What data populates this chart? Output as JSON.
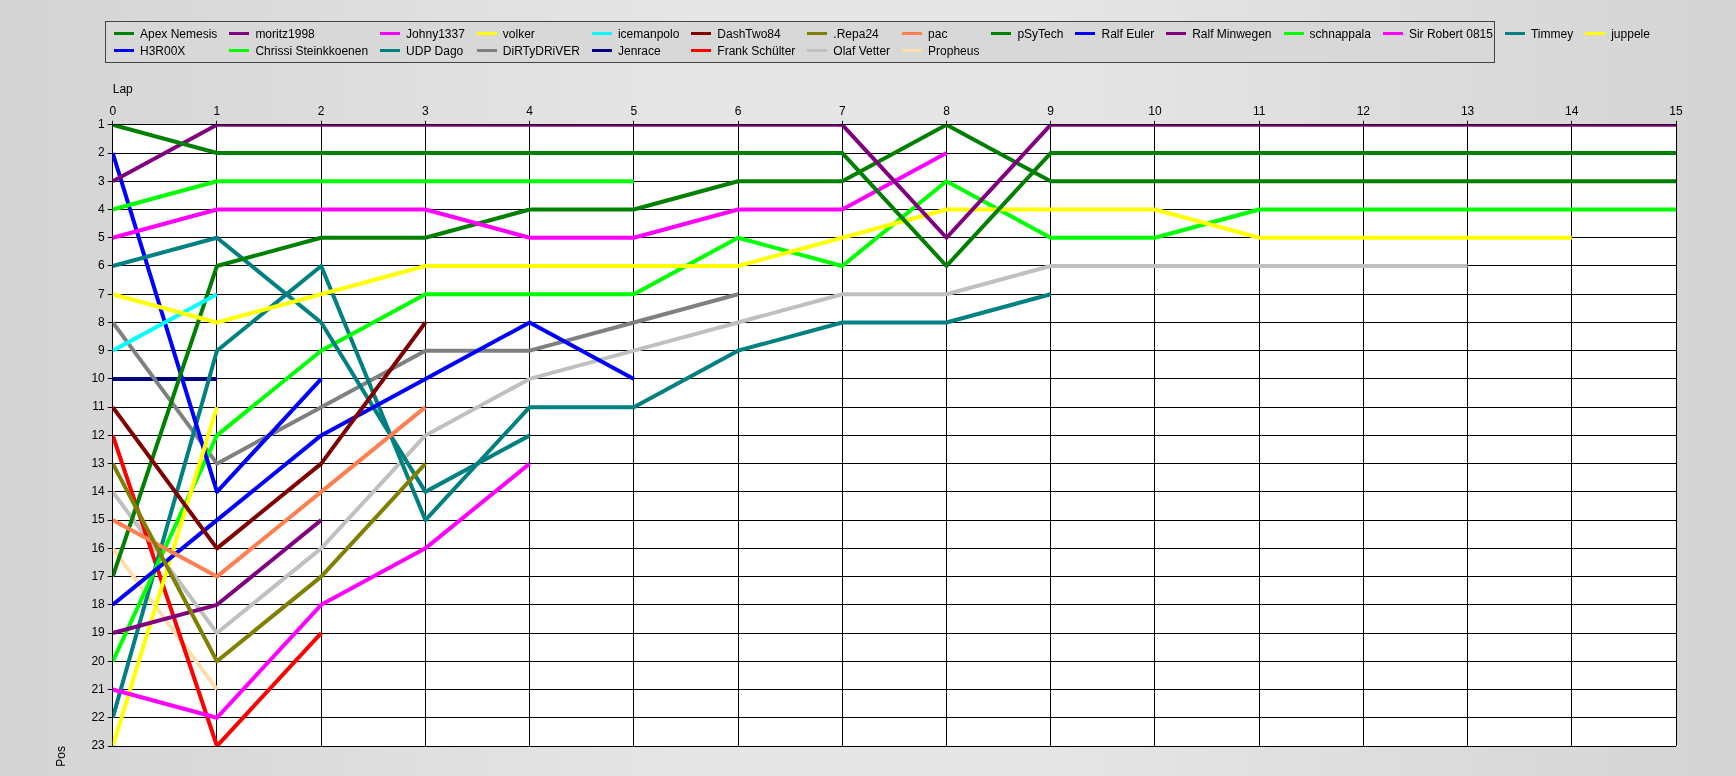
{
  "chart_data": {
    "type": "line",
    "xlabel": "Lap",
    "ylabel": "Pos",
    "x": [
      0,
      1,
      2,
      3,
      4,
      5,
      6,
      7,
      8,
      9,
      10,
      11,
      12,
      13,
      14,
      15
    ],
    "xlim": [
      0,
      15
    ],
    "xticks": [
      0,
      1,
      2,
      3,
      4,
      5,
      6,
      7,
      8,
      9,
      10,
      11,
      12,
      13,
      14,
      15
    ],
    "ylim": [
      23,
      1
    ],
    "yticks": [
      1,
      2,
      3,
      4,
      5,
      6,
      7,
      8,
      9,
      10,
      11,
      12,
      13,
      14,
      15,
      16,
      17,
      18,
      19,
      20,
      21,
      22,
      23
    ],
    "grid": true,
    "legend": "top",
    "marker": "none",
    "line_style": "solid",
    "series": [
      {
        "name": "Apex Nemesis",
        "color": "#008000",
        "values": [
          1,
          2,
          2,
          2,
          2,
          2,
          2,
          2,
          6,
          2,
          2,
          2,
          2,
          2,
          2,
          2
        ]
      },
      {
        "name": "moritz1998",
        "color": "#800080",
        "values": [
          3,
          1,
          1,
          1,
          1,
          1,
          1,
          1,
          5,
          1,
          1,
          1,
          1,
          1,
          1,
          1
        ]
      },
      {
        "name": "Johny1337",
        "color": "#ff00ff",
        "values": [
          5,
          4,
          4,
          4,
          5,
          5,
          4,
          4,
          2,
          null,
          null,
          null,
          null,
          null,
          null,
          null
        ]
      },
      {
        "name": "volker",
        "color": "#ffff00",
        "values": [
          7,
          8,
          7,
          6,
          6,
          6,
          6,
          5,
          4,
          4,
          4,
          5,
          5,
          5,
          5,
          null
        ]
      },
      {
        "name": "icemanpolo",
        "color": "#00ffff",
        "values": [
          9,
          7,
          null,
          null,
          null,
          null,
          null,
          null,
          null,
          null,
          null,
          null,
          null,
          null,
          null,
          null
        ]
      },
      {
        "name": "DashTwo84",
        "color": "#800000",
        "values": [
          11,
          16,
          13,
          8,
          null,
          null,
          null,
          null,
          null,
          null,
          null,
          null,
          null,
          null,
          null,
          null
        ]
      },
      {
        "name": ".Repa24",
        "color": "#808000",
        "values": [
          13,
          20,
          17,
          13,
          null,
          null,
          null,
          null,
          null,
          null,
          null,
          null,
          null,
          null,
          null,
          null
        ]
      },
      {
        "name": "pac",
        "color": "#ff7f50",
        "values": [
          15,
          17,
          14,
          11,
          null,
          null,
          null,
          null,
          null,
          null,
          null,
          null,
          null,
          null,
          null,
          null
        ]
      },
      {
        "name": "pSyTech",
        "color": "#008000",
        "values": [
          17,
          6,
          5,
          5,
          4,
          4,
          3,
          3,
          1,
          3,
          3,
          3,
          3,
          3,
          3,
          3
        ]
      },
      {
        "name": "Ralf Euler",
        "color": "#0000ff",
        "values": [
          18,
          15,
          12,
          10,
          8,
          10,
          null,
          null,
          null,
          null,
          null,
          null,
          null,
          null,
          null,
          null
        ]
      },
      {
        "name": "Ralf Minwegen",
        "color": "#800080",
        "values": [
          19,
          18,
          15,
          null,
          null,
          null,
          null,
          null,
          null,
          null,
          null,
          null,
          null,
          null,
          null,
          null
        ]
      },
      {
        "name": "schnappala",
        "color": "#00ff00",
        "values": [
          4,
          3,
          3,
          3,
          3,
          3,
          null,
          null,
          null,
          null,
          null,
          null,
          null,
          null,
          null,
          null
        ]
      },
      {
        "name": "Sir Robert 0815",
        "color": "#ff00ff",
        "values": [
          21,
          22,
          18,
          16,
          13,
          null,
          null,
          null,
          null,
          null,
          null,
          null,
          null,
          null,
          null,
          null
        ]
      },
      {
        "name": "Timmey",
        "color": "#008080",
        "values": [
          6,
          5,
          8,
          14,
          12,
          null,
          null,
          null,
          null,
          null,
          null,
          null,
          null,
          null,
          null,
          null
        ]
      },
      {
        "name": "juppele",
        "color": "#ffff00",
        "values": [
          23,
          11,
          null,
          null,
          null,
          null,
          null,
          null,
          null,
          null,
          null,
          null,
          null,
          null,
          null,
          null
        ]
      },
      {
        "name": "H3R00X",
        "color": "#0000ff",
        "values": [
          2,
          14,
          10,
          null,
          null,
          null,
          null,
          null,
          null,
          null,
          null,
          null,
          null,
          null,
          null,
          null
        ]
      },
      {
        "name": "Chrissi Steinkkoenen",
        "color": "#00ff00",
        "values": [
          20,
          12,
          9,
          7,
          7,
          7,
          5,
          6,
          3,
          5,
          5,
          4,
          4,
          4,
          4,
          4
        ]
      },
      {
        "name": "UDP Dago",
        "color": "#008080",
        "values": [
          22,
          9,
          6,
          15,
          11,
          11,
          9,
          8,
          8,
          7,
          null,
          null,
          null,
          null,
          null,
          null
        ]
      },
      {
        "name": "DiRTyDRiVER",
        "color": "#808080",
        "values": [
          8,
          13,
          11,
          9,
          9,
          8,
          7,
          null,
          null,
          null,
          null,
          null,
          null,
          null,
          null,
          null
        ]
      },
      {
        "name": "Jenrace",
        "color": "#000080",
        "values": [
          10,
          10,
          null,
          null,
          null,
          null,
          null,
          null,
          null,
          null,
          null,
          null,
          null,
          null,
          null,
          null
        ]
      },
      {
        "name": "Frank Schülter",
        "color": "#ff0000",
        "values": [
          12,
          23,
          19,
          null,
          null,
          null,
          null,
          null,
          null,
          null,
          null,
          null,
          null,
          null,
          null,
          null
        ]
      },
      {
        "name": "Olaf Vetter",
        "color": "#c0c0c0",
        "values": [
          14,
          19,
          16,
          12,
          10,
          9,
          8,
          7,
          7,
          6,
          6,
          6,
          6,
          6,
          null,
          null
        ]
      },
      {
        "name": "Propheus",
        "color": "#ffdead",
        "values": [
          16,
          21,
          null,
          null,
          null,
          null,
          null,
          null,
          null,
          null,
          null,
          null,
          null,
          null,
          null,
          null
        ]
      }
    ]
  }
}
